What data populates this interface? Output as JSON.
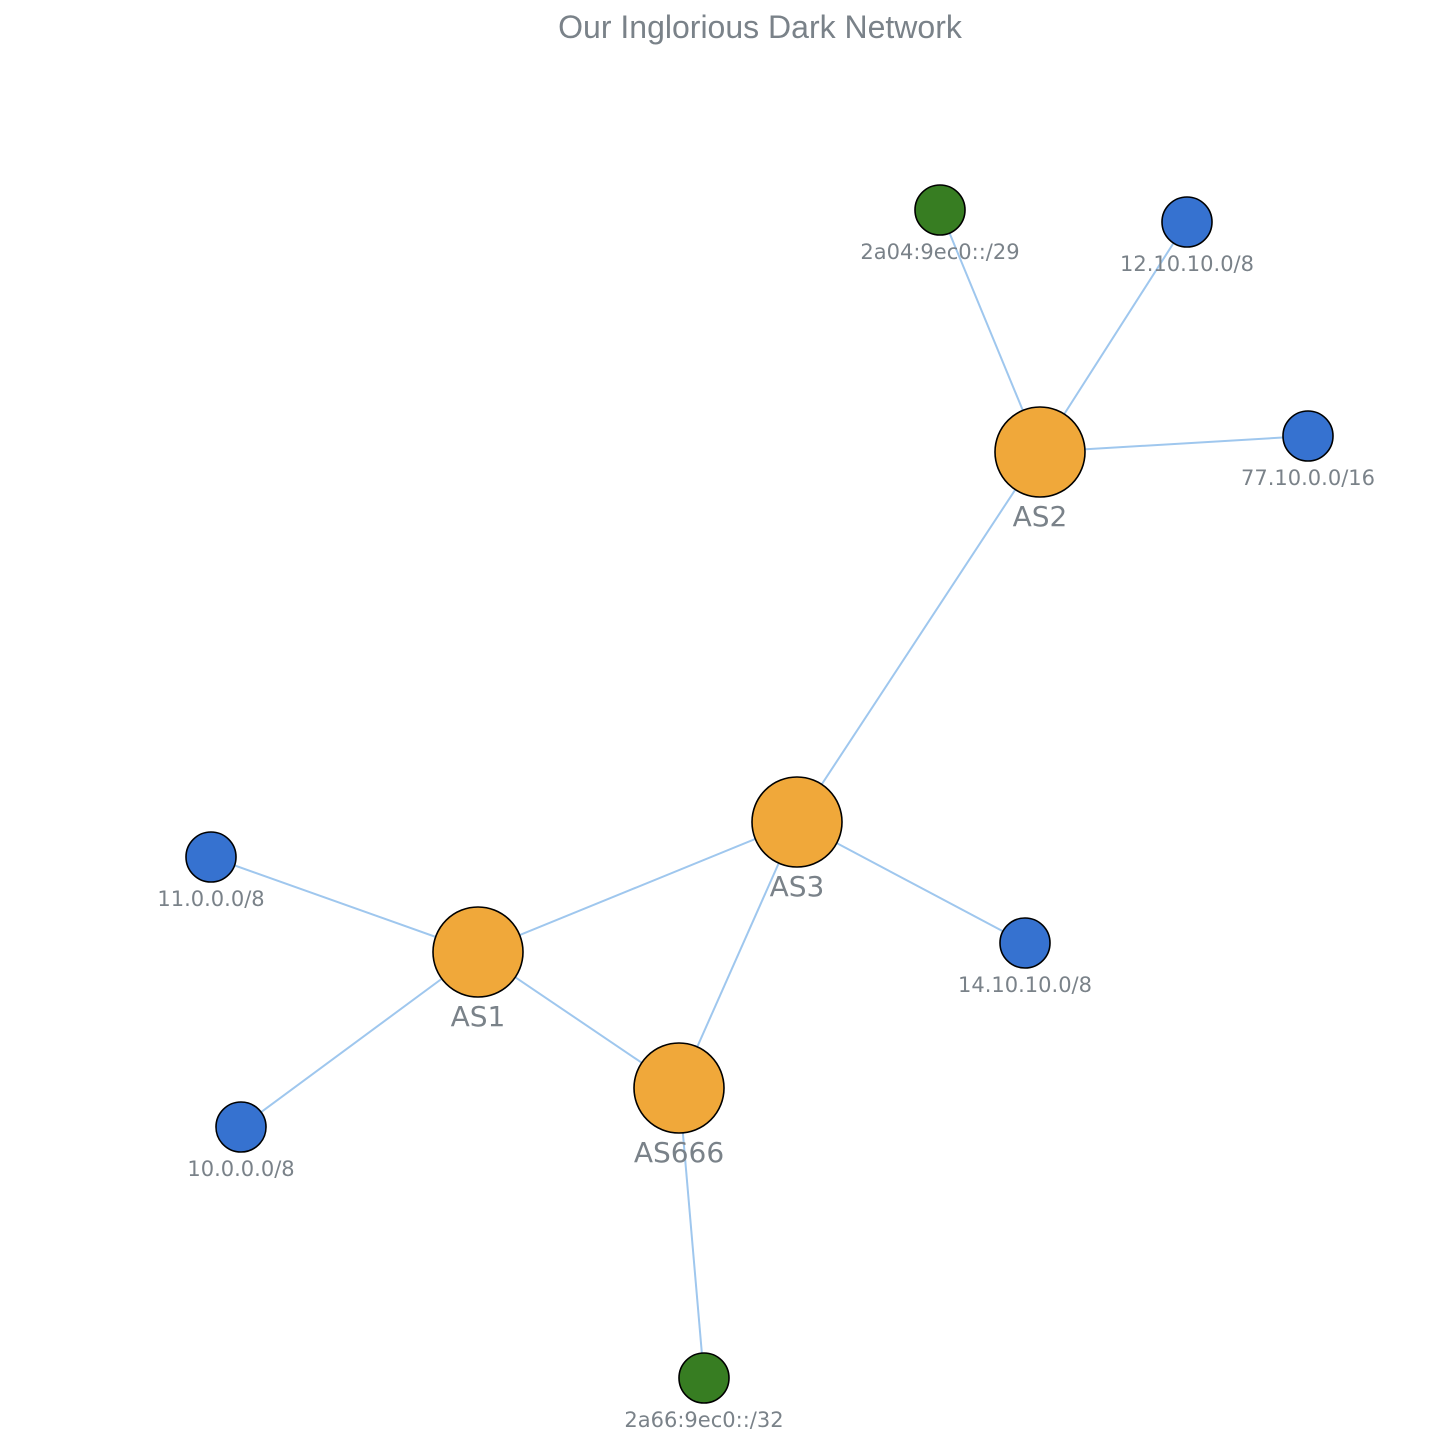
{
  "title": "Our Inglorious Dark Network",
  "colors": {
    "as_node": "#f0a83a",
    "ipv4_node": "#3672d0",
    "ipv6_node": "#377d22",
    "edge": "#9fc7ee",
    "label": "#7a8289"
  },
  "nodes": [
    {
      "id": "AS1",
      "label": "AS1",
      "kind": "as"
    },
    {
      "id": "AS2",
      "label": "AS2",
      "kind": "as"
    },
    {
      "id": "AS3",
      "label": "AS3",
      "kind": "as"
    },
    {
      "id": "AS666",
      "label": "AS666",
      "kind": "as"
    },
    {
      "id": "p-2a04",
      "label": "2a04:9ec0::/29",
      "kind": "ipv6"
    },
    {
      "id": "p-12",
      "label": "12.10.10.0/8",
      "kind": "ipv4"
    },
    {
      "id": "p-77",
      "label": "77.10.0.0/16",
      "kind": "ipv4"
    },
    {
      "id": "p-11",
      "label": "11.0.0.0/8",
      "kind": "ipv4"
    },
    {
      "id": "p-14",
      "label": "14.10.10.0/8",
      "kind": "ipv4"
    },
    {
      "id": "p-10",
      "label": "10.0.0.0/8",
      "kind": "ipv4"
    },
    {
      "id": "p-2a66",
      "label": "2a66:9ec0::/32",
      "kind": "ipv6"
    }
  ],
  "edges": [
    [
      "AS2",
      "p-2a04"
    ],
    [
      "AS2",
      "p-12"
    ],
    [
      "AS2",
      "p-77"
    ],
    [
      "AS2",
      "AS3"
    ],
    [
      "AS3",
      "AS1"
    ],
    [
      "AS3",
      "AS666"
    ],
    [
      "AS3",
      "p-14"
    ],
    [
      "AS1",
      "p-11"
    ],
    [
      "AS1",
      "p-10"
    ],
    [
      "AS1",
      "AS666"
    ],
    [
      "AS666",
      "p-2a66"
    ]
  ]
}
